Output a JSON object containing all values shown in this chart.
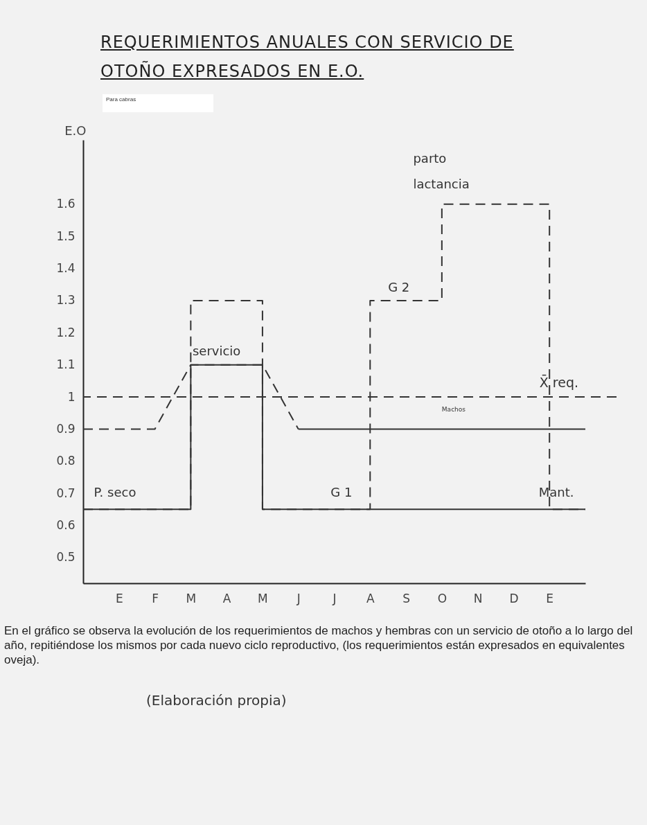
{
  "chart_data": {
    "type": "line",
    "title": "REQUERIMIENTOS ANUALES CON SERVICIO DE OTOÑO EXPRESADOS EN E.O.",
    "subtitle": "Para cabras",
    "ylabel": "E.O",
    "categories": [
      null,
      "E",
      "F",
      "M",
      "A",
      "M",
      "J",
      "J",
      "A",
      "S",
      "O",
      "N",
      "D",
      "E",
      null
    ],
    "ylim": [
      0.42,
      1.8
    ],
    "yticks": [
      0.5,
      0.6,
      0.7,
      0.8,
      0.9,
      1,
      1.1,
      1.2,
      1.3,
      1.4,
      1.5,
      1.6
    ],
    "grid": false,
    "marker": "none",
    "series": [
      {
        "type": "step",
        "color": "#333333",
        "line_style": "dashed",
        "values": [
          0.65,
          0.65,
          0.65,
          1.3,
          1.3,
          0.65,
          0.65,
          0.65,
          1.3,
          1.3,
          1.6,
          1.6,
          1.6,
          0.65,
          0.65
        ]
      },
      {
        "color": "#333333",
        "line_style": "dashed",
        "values": [
          0.9,
          0.9,
          0.9,
          1.1,
          1.1,
          1.1,
          0.9,
          null,
          null,
          null,
          null,
          null,
          null,
          null,
          null
        ]
      },
      {
        "type": "step",
        "color": "#333333",
        "line_style": "solid",
        "values": [
          0.65,
          0.65,
          0.65,
          1.1,
          1.1,
          0.65,
          0.65,
          0.65,
          0.65,
          0.65,
          0.65,
          0.65,
          0.65,
          0.65,
          0.65
        ]
      },
      {
        "color": "#333333",
        "line_style": "solid",
        "values": [
          null,
          null,
          null,
          null,
          null,
          null,
          0.9,
          0.9,
          0.9,
          0.9,
          0.9,
          0.9,
          0.9,
          0.9,
          0.9
        ]
      }
    ],
    "ref_lines": [
      {
        "axis": "y",
        "value": 1,
        "label": "X̄ req.",
        "color": "#333333",
        "line_style": "dashed"
      }
    ],
    "annotations": [
      "servicio",
      "P. seco",
      "G 1",
      "Mant.",
      "G 2",
      "parto",
      "lactancia",
      "Machos",
      "En el gráfico se observa la evolución de los requerimientos de machos y hembras con un servicio de otoño a lo largo del año, repitiéndose los mismos por cada nuevo ciclo reproductivo, (los requerimientos están expresados en equivalentes oveja).",
      "(Elaboración propia)"
    ]
  }
}
